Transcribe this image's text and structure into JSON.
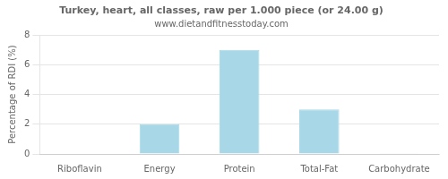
{
  "chart_data": {
    "type": "bar",
    "title": "Turkey, heart, all classes, raw per 1.000 piece (or 24.00 g)",
    "subtitle": "www.dietandfitnesstoday.com",
    "categories": [
      "Riboflavin",
      "Energy",
      "Protein",
      "Total-Fat",
      "Carbohydrate"
    ],
    "values": [
      0.0,
      2.0,
      7.0,
      3.0,
      0.05
    ],
    "color": "#a8d8e8",
    "ylabel": "Percentage of RDI (%)",
    "ylim": [
      0,
      8
    ],
    "yticks": [
      0,
      2,
      4,
      6,
      8
    ],
    "grid": true
  }
}
